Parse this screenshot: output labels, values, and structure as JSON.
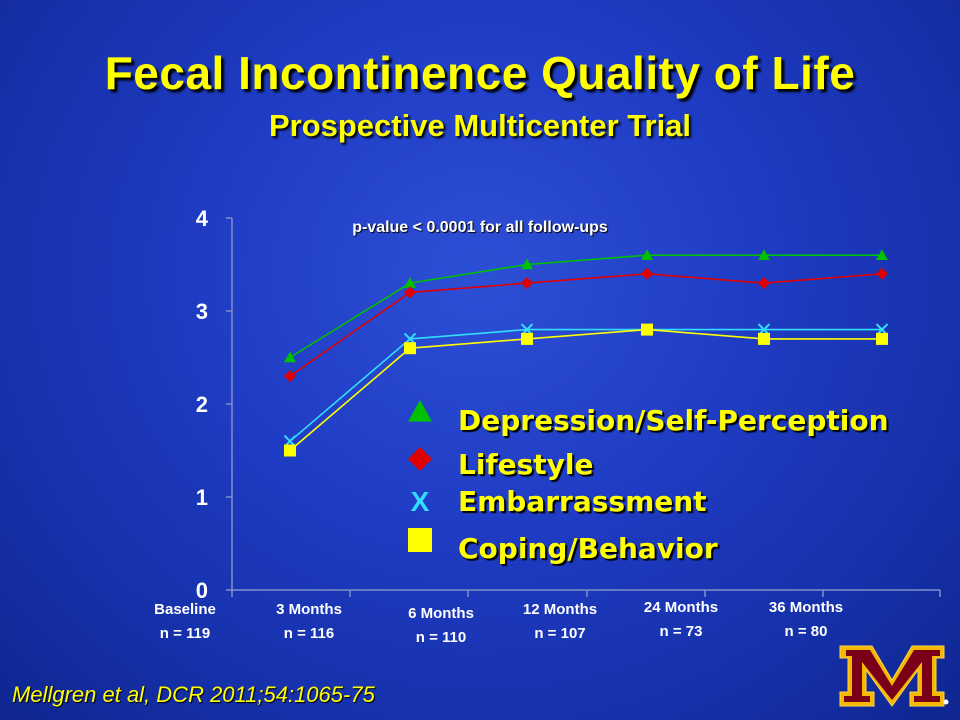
{
  "slide": {
    "title": "Fecal Incontinence Quality of Life",
    "subtitle": "Prospective Multicenter Trial",
    "citation": "Mellgren et al, DCR 2011;54:1065-75"
  },
  "chart_data": {
    "type": "line",
    "annotation": "p-value < 0.0001 for all follow-ups",
    "ylim": [
      0,
      4
    ],
    "yticks": [
      "0",
      "1",
      "2",
      "3",
      "4"
    ],
    "grid": false,
    "legend_position": "center-right",
    "categories": [
      {
        "label": "Baseline",
        "n": "n = 119"
      },
      {
        "label": "3 Months",
        "n": "n = 116"
      },
      {
        "label": "6 Months",
        "n": "n = 110"
      },
      {
        "label": "12 Months",
        "n": "n = 107"
      },
      {
        "label": "24 Months",
        "n": "n = 73"
      },
      {
        "label": "36 Months",
        "n": "n = 80"
      }
    ],
    "series": [
      {
        "name": "Depression/Self-Perception",
        "marker": "triangle",
        "color": "#00c000",
        "values": [
          2.5,
          3.3,
          3.5,
          3.6,
          3.6,
          3.6
        ]
      },
      {
        "name": "Lifestyle",
        "marker": "diamond",
        "color": "#e00000",
        "values": [
          2.3,
          3.2,
          3.3,
          3.4,
          3.3,
          3.4
        ]
      },
      {
        "name": "Embarrassment",
        "marker": "x",
        "color": "#33ddff",
        "values": [
          1.6,
          2.7,
          2.8,
          2.8,
          2.8,
          2.8
        ]
      },
      {
        "name": "Coping/Behavior",
        "marker": "square",
        "color": "#ffff00",
        "values": [
          1.5,
          2.6,
          2.7,
          2.8,
          2.7,
          2.7
        ]
      }
    ],
    "legend_x_glyph": "X"
  }
}
